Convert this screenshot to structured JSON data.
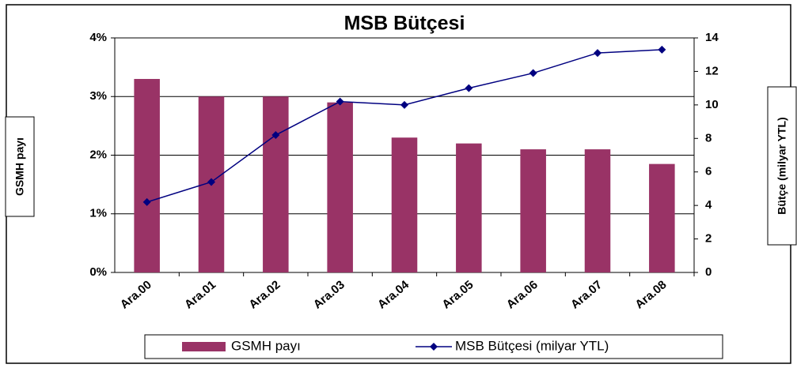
{
  "chart_data": {
    "type": "bar",
    "title": "MSB Bütçesi",
    "categories": [
      "Ara.00",
      "Ara.01",
      "Ara.02",
      "Ara.03",
      "Ara.04",
      "Ara.05",
      "Ara.06",
      "Ara.07",
      "Ara.08"
    ],
    "series": [
      {
        "name": "GSMH payı",
        "type": "bar",
        "color": "#993366",
        "values": [
          3.3,
          3.0,
          3.0,
          2.9,
          2.3,
          2.2,
          2.1,
          2.1,
          1.85
        ]
      },
      {
        "name": "MSB Bütçesi (milyar YTL)",
        "type": "line",
        "axis": "y2",
        "color": "#000080",
        "values": [
          4.2,
          5.4,
          8.2,
          10.2,
          10.0,
          11.0,
          11.9,
          13.1,
          13.3
        ]
      }
    ],
    "ylabel": "GSMH payı",
    "y2label": "Bütçe (milyar YTL)",
    "ylim": [
      0,
      4
    ],
    "yticks": [
      {
        "value": 0,
        "label": "0%"
      },
      {
        "value": 1,
        "label": "1%"
      },
      {
        "value": 2,
        "label": "2%"
      },
      {
        "value": 3,
        "label": "3%"
      },
      {
        "value": 4,
        "label": "4%"
      }
    ],
    "y2lim": [
      0,
      14
    ],
    "y2ticks": [
      0,
      2,
      4,
      6,
      8,
      10,
      12,
      14
    ],
    "grid": true,
    "legend": "bottom"
  }
}
